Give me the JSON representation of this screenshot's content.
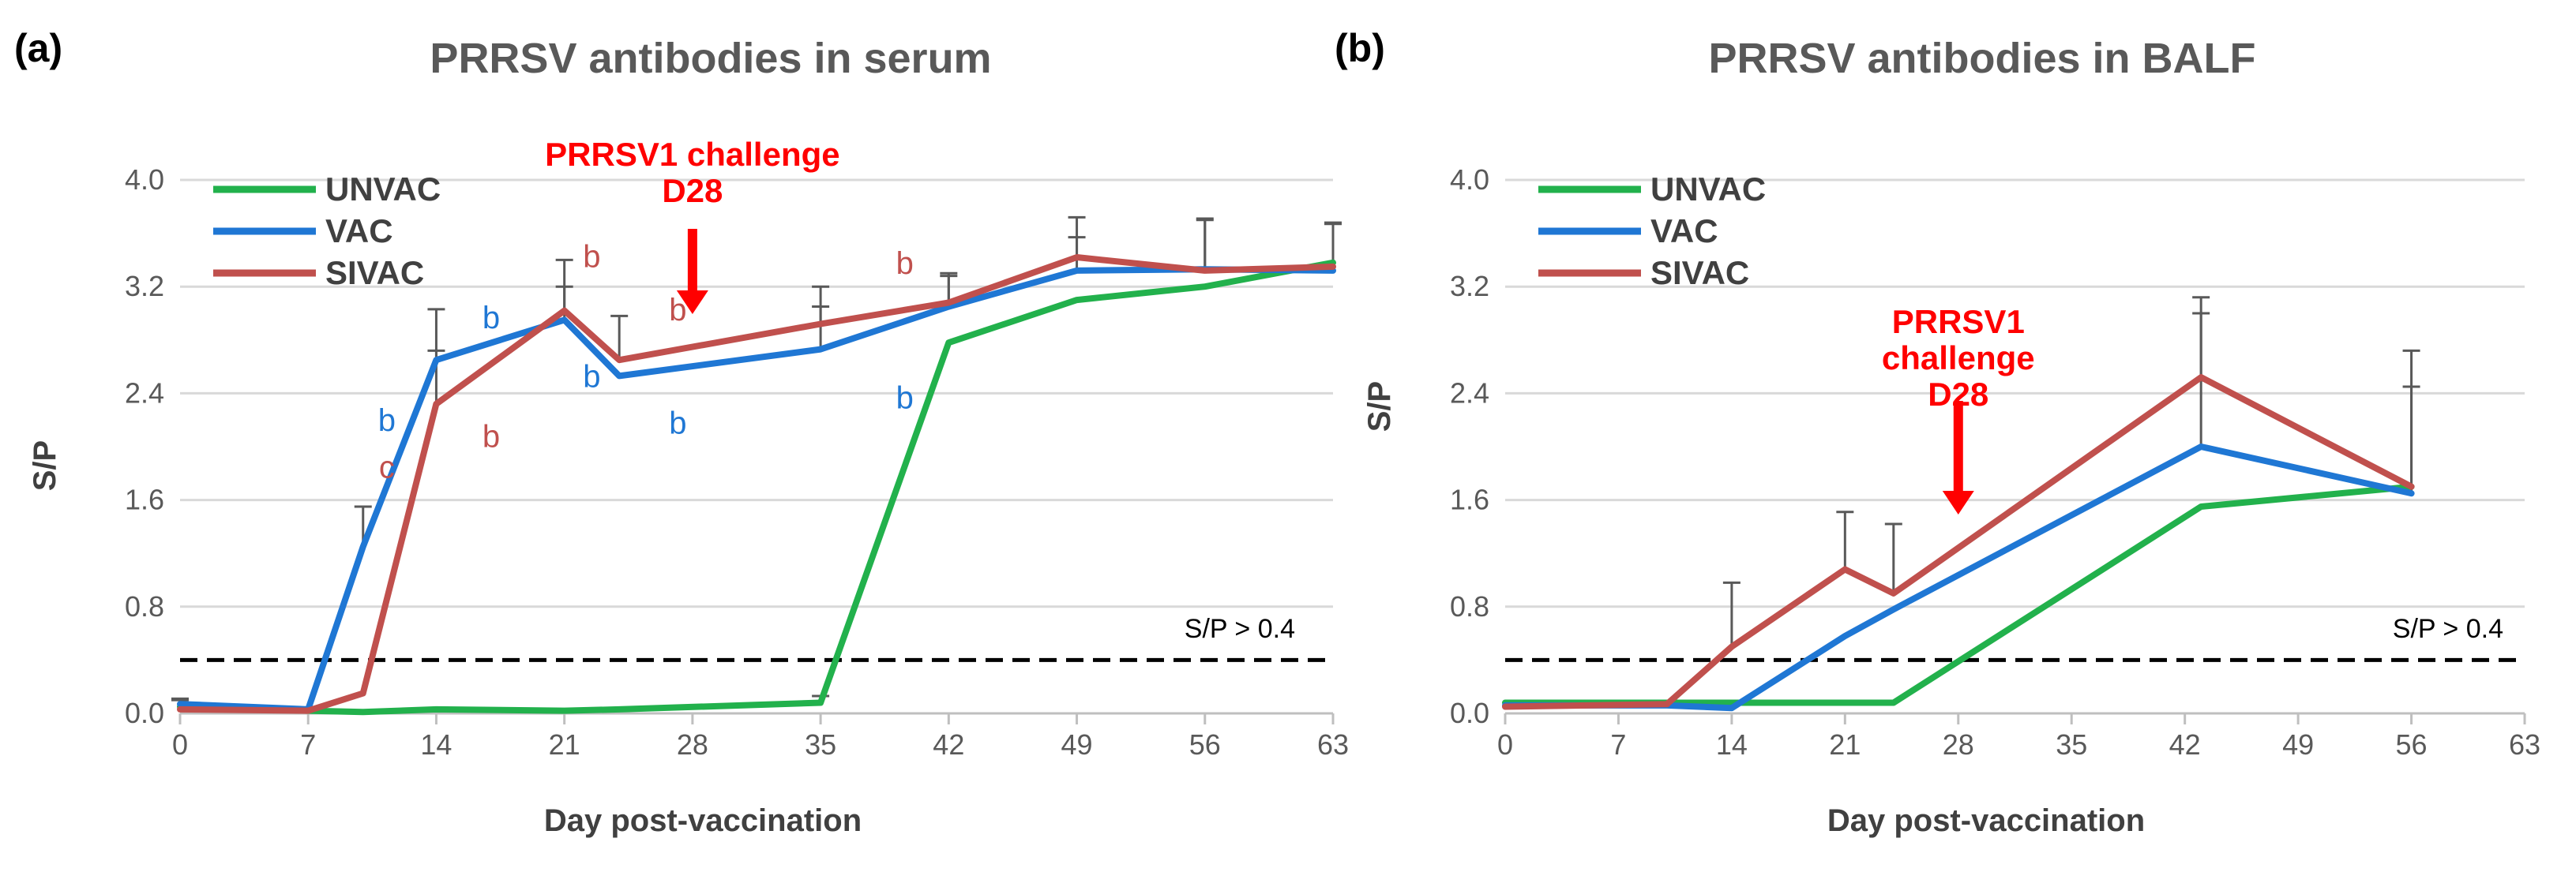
{
  "chart_data": [
    {
      "type": "line",
      "panel_label": "(a)",
      "title": "PRRSV antibodies in serum",
      "xlabel": "Day post-vaccination",
      "ylabel": "S/P",
      "xlim": [
        0,
        63
      ],
      "ylim": [
        0,
        4
      ],
      "x_ticks": [
        0,
        7,
        14,
        21,
        28,
        35,
        42,
        49,
        56,
        63
      ],
      "y_ticks": [
        0,
        0.8,
        1.6,
        2.4,
        3.2,
        4.0
      ],
      "y_tick_labels": [
        "0.0",
        "0.8",
        "1.6",
        "2.4",
        "3.2",
        "4.0"
      ],
      "grid": "horizontal",
      "legend_position": "top-left",
      "threshold": {
        "value": 0.4,
        "label": "S/P > 0.4"
      },
      "challenge": {
        "x": 28,
        "line1": "PRRSV1 challenge",
        "line2": "D28"
      },
      "series": [
        {
          "name": "UNVAC",
          "color": "#22b14c",
          "x": [
            0,
            7,
            10,
            14,
            21,
            24,
            35,
            42,
            49,
            56,
            63
          ],
          "values": [
            0.05,
            0.02,
            0.01,
            0.03,
            0.02,
            0.03,
            0.08,
            2.78,
            3.1,
            3.2,
            3.38
          ],
          "error": [
            0.05,
            0,
            0,
            0,
            0,
            0,
            0.05,
            0,
            0,
            0,
            0
          ]
        },
        {
          "name": "VAC",
          "color": "#1f77d4",
          "x": [
            0,
            7,
            10,
            14,
            21,
            24,
            35,
            42,
            49,
            56,
            63
          ],
          "values": [
            0.07,
            0.03,
            1.25,
            2.65,
            2.95,
            2.53,
            2.73,
            3.05,
            3.32,
            3.33,
            3.32
          ],
          "error": [
            0.04,
            0,
            0.3,
            0.38,
            0.25,
            0,
            0.32,
            0.23,
            0.25,
            0.38,
            0.35
          ]
        },
        {
          "name": "SIVAC",
          "color": "#c0504d",
          "x": [
            0,
            7,
            10,
            14,
            21,
            24,
            35,
            42,
            49,
            56,
            63
          ],
          "values": [
            0.03,
            0.02,
            0.15,
            2.32,
            3.02,
            2.65,
            2.92,
            3.08,
            3.42,
            3.32,
            3.35
          ],
          "error": [
            0,
            0,
            0,
            0.4,
            0.38,
            0.33,
            0.28,
            0.22,
            0.3,
            0.38,
            0.33
          ]
        }
      ],
      "annotations": [
        {
          "text": "b",
          "x": 11.3,
          "y": 2.2,
          "series": "VAC"
        },
        {
          "text": "c",
          "x": 11.3,
          "y": 1.85,
          "series": "SIVAC"
        },
        {
          "text": "b",
          "x": 17.0,
          "y": 2.97,
          "series": "VAC"
        },
        {
          "text": "b",
          "x": 17.0,
          "y": 2.08,
          "series": "SIVAC"
        },
        {
          "text": "b",
          "x": 22.5,
          "y": 3.43,
          "series": "SIVAC"
        },
        {
          "text": "b",
          "x": 22.5,
          "y": 2.53,
          "series": "VAC"
        },
        {
          "text": "b",
          "x": 27.2,
          "y": 3.03,
          "series": "SIVAC"
        },
        {
          "text": "b",
          "x": 27.2,
          "y": 2.18,
          "series": "VAC"
        },
        {
          "text": "b",
          "x": 39.6,
          "y": 3.38,
          "series": "SIVAC"
        },
        {
          "text": "b",
          "x": 39.6,
          "y": 2.37,
          "series": "VAC"
        }
      ]
    },
    {
      "type": "line",
      "panel_label": "(b)",
      "title": "PRRSV antibodies in BALF",
      "xlabel": "Day post-vaccination",
      "ylabel": "S/P",
      "xlim": [
        0,
        63
      ],
      "ylim": [
        0,
        4
      ],
      "x_ticks": [
        0,
        7,
        14,
        21,
        28,
        35,
        42,
        49,
        56,
        63
      ],
      "y_ticks": [
        0,
        0.8,
        1.6,
        2.4,
        3.2,
        4.0
      ],
      "y_tick_labels": [
        "0.0",
        "0.8",
        "1.6",
        "2.4",
        "3.2",
        "4.0"
      ],
      "grid": "horizontal",
      "legend_position": "top-left",
      "threshold": {
        "value": 0.4,
        "label": "S/P > 0.4"
      },
      "challenge": {
        "x": 28,
        "line1": "PRRSV1",
        "line2": "challenge",
        "line3": "D28"
      },
      "series": [
        {
          "name": "UNVAC",
          "color": "#22b14c",
          "x": [
            0,
            10,
            14,
            21,
            24,
            43,
            56
          ],
          "values": [
            0.08,
            0.08,
            0.08,
            0.08,
            0.08,
            1.55,
            1.7
          ],
          "error": [
            0,
            0,
            0,
            0,
            0,
            0,
            0
          ]
        },
        {
          "name": "VAC",
          "color": "#1f77d4",
          "x": [
            0,
            10,
            14,
            21,
            24,
            43,
            56
          ],
          "values": [
            0.06,
            0.06,
            0.04,
            0.58,
            0.78,
            2.0,
            1.65
          ],
          "error": [
            0,
            0,
            0,
            0,
            0,
            1.0,
            0.8
          ]
        },
        {
          "name": "SIVAC",
          "color": "#c0504d",
          "x": [
            0,
            10,
            14,
            21,
            24,
            43,
            56
          ],
          "values": [
            0.05,
            0.07,
            0.5,
            1.08,
            0.9,
            2.52,
            1.7
          ],
          "error": [
            0,
            0,
            0.48,
            0.43,
            0.52,
            0.6,
            1.02
          ]
        }
      ],
      "annotations": []
    }
  ]
}
